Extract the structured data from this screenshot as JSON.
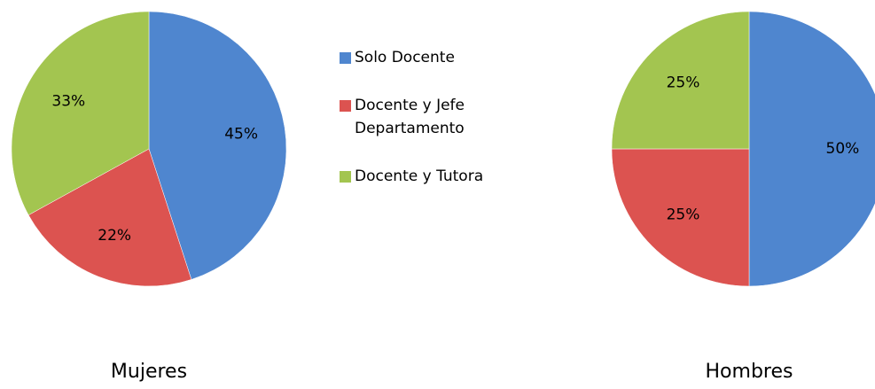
{
  "chart_data": [
    {
      "type": "pie",
      "title": "Mujeres",
      "categories": [
        "Solo Docente",
        "Docente y Jefe Departamento",
        "Docente y Tutora"
      ],
      "values": [
        45,
        22,
        33
      ],
      "value_labels": [
        "45%",
        "22%",
        "33%"
      ],
      "colors": [
        "#4f86cf",
        "#dc5350",
        "#a3c550"
      ]
    },
    {
      "type": "pie",
      "title": "Hombres",
      "categories": [
        "Solo Docente",
        "Docente y Jefe Departamento",
        "Docente y Tutora"
      ],
      "values": [
        50,
        25,
        25
      ],
      "value_labels": [
        "50%",
        "25%",
        "25%"
      ],
      "colors": [
        "#4f86cf",
        "#dc5350",
        "#a3c550"
      ]
    }
  ]
}
